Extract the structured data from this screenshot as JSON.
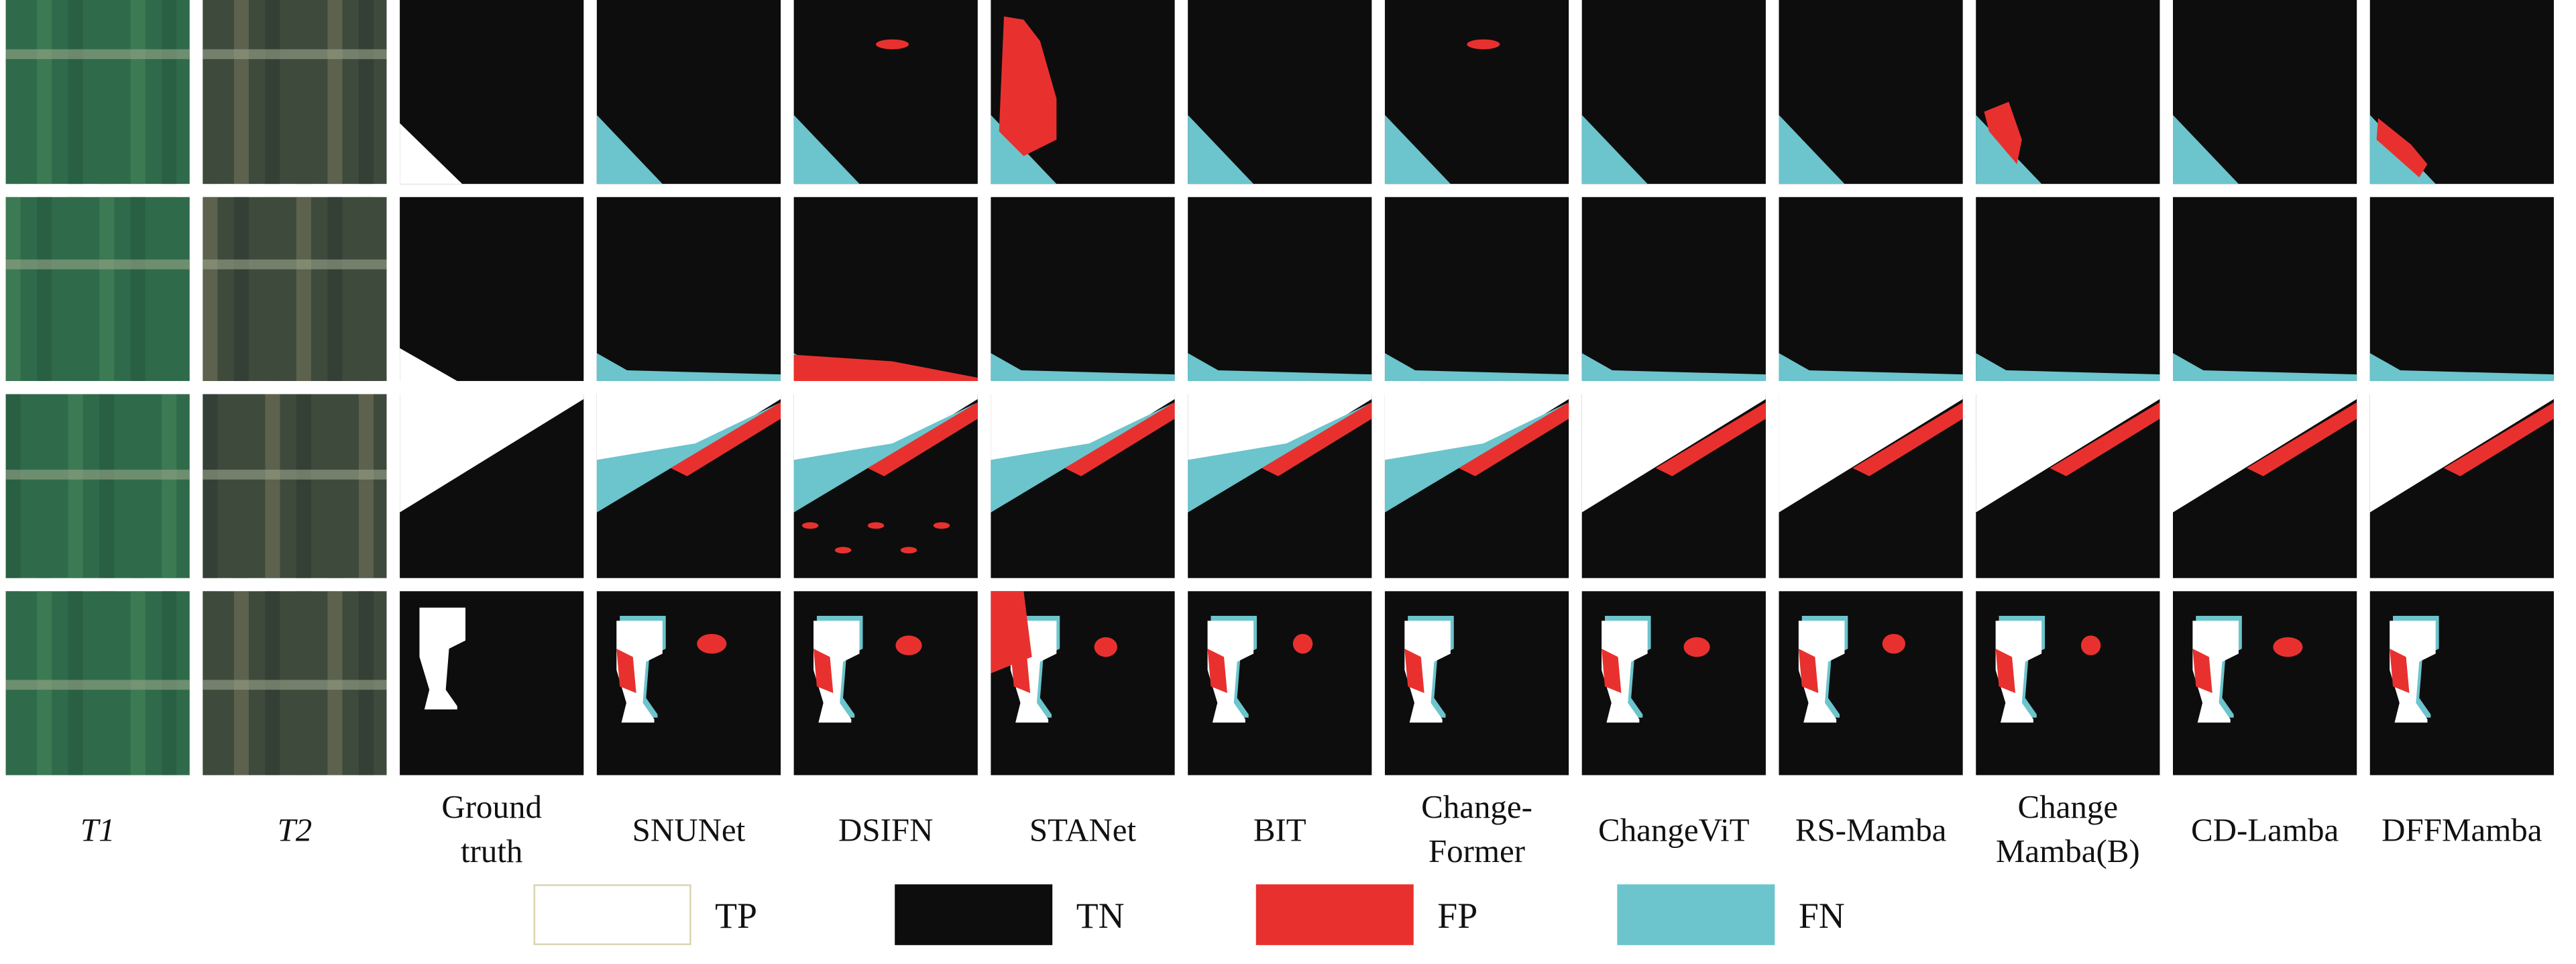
{
  "columns": [
    {
      "lines": [
        "T1"
      ],
      "italic": true
    },
    {
      "lines": [
        "T2"
      ],
      "italic": true
    },
    {
      "lines": [
        "Ground",
        "truth"
      ]
    },
    {
      "lines": [
        "SNUNet"
      ]
    },
    {
      "lines": [
        "DSIFN"
      ]
    },
    {
      "lines": [
        "STANet"
      ]
    },
    {
      "lines": [
        "BIT"
      ]
    },
    {
      "lines": [
        "Change-",
        "Former"
      ]
    },
    {
      "lines": [
        "ChangeViT"
      ]
    },
    {
      "lines": [
        "RS-Mamba"
      ]
    },
    {
      "lines": [
        "Change",
        "Mamba(B)"
      ]
    },
    {
      "lines": [
        "CD-Lamba"
      ]
    },
    {
      "lines": [
        "DFFMamba"
      ]
    }
  ],
  "legend": [
    {
      "label": "TP",
      "color": "#ffffff"
    },
    {
      "label": "TN",
      "color": "#0d0d0d"
    },
    {
      "label": "FP",
      "color": "#e8312e"
    },
    {
      "label": "FN",
      "color": "#6cc4cc"
    }
  ]
}
